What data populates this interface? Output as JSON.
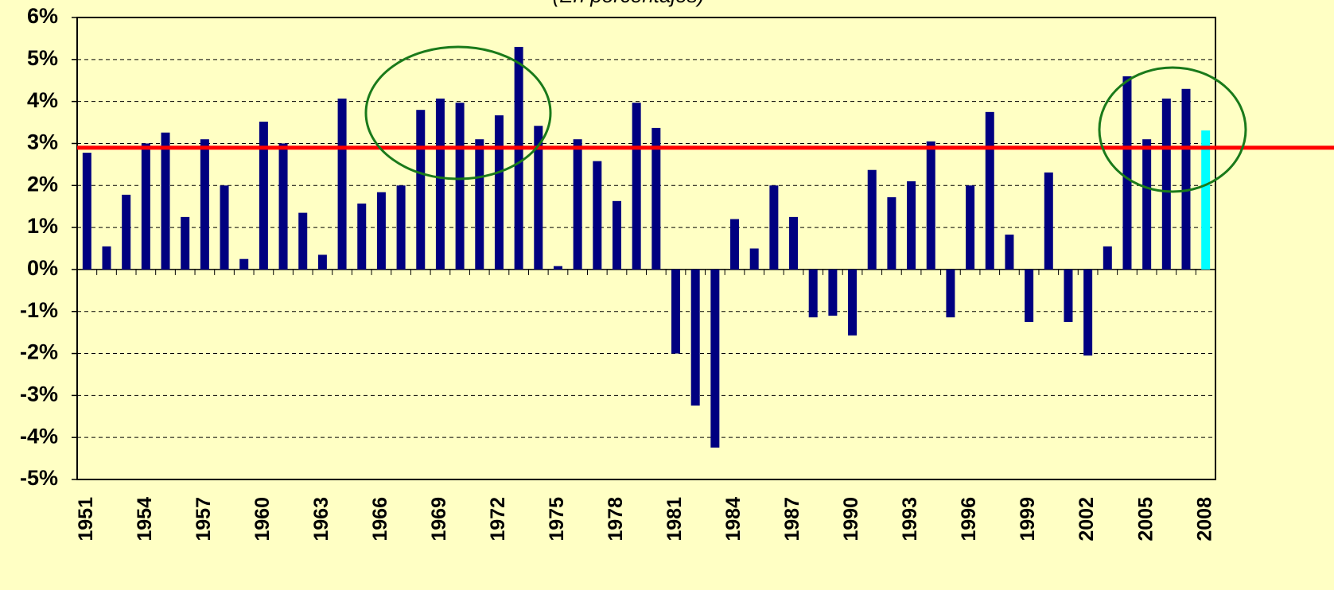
{
  "chart_data": {
    "type": "bar",
    "subtitle": "(En porcentajes)",
    "categories": [
      "1951",
      null,
      null,
      "1954",
      null,
      null,
      "1957",
      null,
      null,
      "1960",
      null,
      null,
      "1963",
      null,
      null,
      "1966",
      null,
      null,
      "1969",
      null,
      null,
      "1972",
      null,
      null,
      "1975",
      null,
      null,
      "1978",
      null,
      null,
      "1981",
      null,
      null,
      "1984",
      null,
      null,
      "1987",
      null,
      null,
      "1990",
      null,
      null,
      "1993",
      null,
      null,
      "1996",
      null,
      null,
      "1999",
      null,
      null,
      "2002",
      null,
      null,
      "2005",
      null,
      null,
      "2008"
    ],
    "values": [
      2.78,
      0.55,
      1.78,
      3.0,
      3.26,
      1.25,
      3.1,
      2.0,
      0.25,
      3.52,
      3.0,
      1.35,
      0.35,
      4.07,
      1.57,
      1.84,
      2.0,
      3.8,
      4.07,
      3.97,
      3.1,
      3.67,
      5.3,
      3.42,
      0.08,
      3.1,
      2.58,
      1.63,
      3.97,
      3.37,
      -2.0,
      -3.24,
      -4.24,
      1.2,
      0.5,
      2.0,
      1.25,
      -1.14,
      -1.1,
      -1.57,
      2.37,
      1.72,
      2.1,
      3.05,
      -1.14,
      2.0,
      3.75,
      0.83,
      -1.25,
      2.31,
      -1.25,
      -2.05,
      0.55,
      4.6,
      3.1,
      4.07,
      4.3,
      3.31
    ],
    "colors": [
      "#000080",
      "#000080",
      "#000080",
      "#000080",
      "#000080",
      "#000080",
      "#000080",
      "#000080",
      "#000080",
      "#000080",
      "#000080",
      "#000080",
      "#000080",
      "#000080",
      "#000080",
      "#000080",
      "#000080",
      "#000080",
      "#000080",
      "#000080",
      "#000080",
      "#000080",
      "#000080",
      "#000080",
      "#000080",
      "#000080",
      "#000080",
      "#000080",
      "#000080",
      "#000080",
      "#000080",
      "#000080",
      "#000080",
      "#000080",
      "#000080",
      "#000080",
      "#000080",
      "#000080",
      "#000080",
      "#000080",
      "#000080",
      "#000080",
      "#000080",
      "#000080",
      "#000080",
      "#000080",
      "#000080",
      "#000080",
      "#000080",
      "#000080",
      "#000080",
      "#000080",
      "#000080",
      "#000080",
      "#000080",
      "#000080",
      "#000080",
      "#00ffff"
    ],
    "ylim": [
      -5,
      6
    ],
    "yticks": [
      {
        "value": -5,
        "label": "-5%"
      },
      {
        "value": -4,
        "label": "-4%"
      },
      {
        "value": -3,
        "label": "-3%"
      },
      {
        "value": -2,
        "label": "-2%"
      },
      {
        "value": -1,
        "label": "-1%"
      },
      {
        "value": 0,
        "label": "0%"
      },
      {
        "value": 1,
        "label": "1%"
      },
      {
        "value": 2,
        "label": "2%"
      },
      {
        "value": 3,
        "label": "3%"
      },
      {
        "value": 4,
        "label": "4%"
      },
      {
        "value": 5,
        "label": "5%"
      },
      {
        "value": 6,
        "label": "6%"
      }
    ],
    "grid": true,
    "reference_line": {
      "value": 2.9,
      "color": "#ff0000"
    }
  }
}
